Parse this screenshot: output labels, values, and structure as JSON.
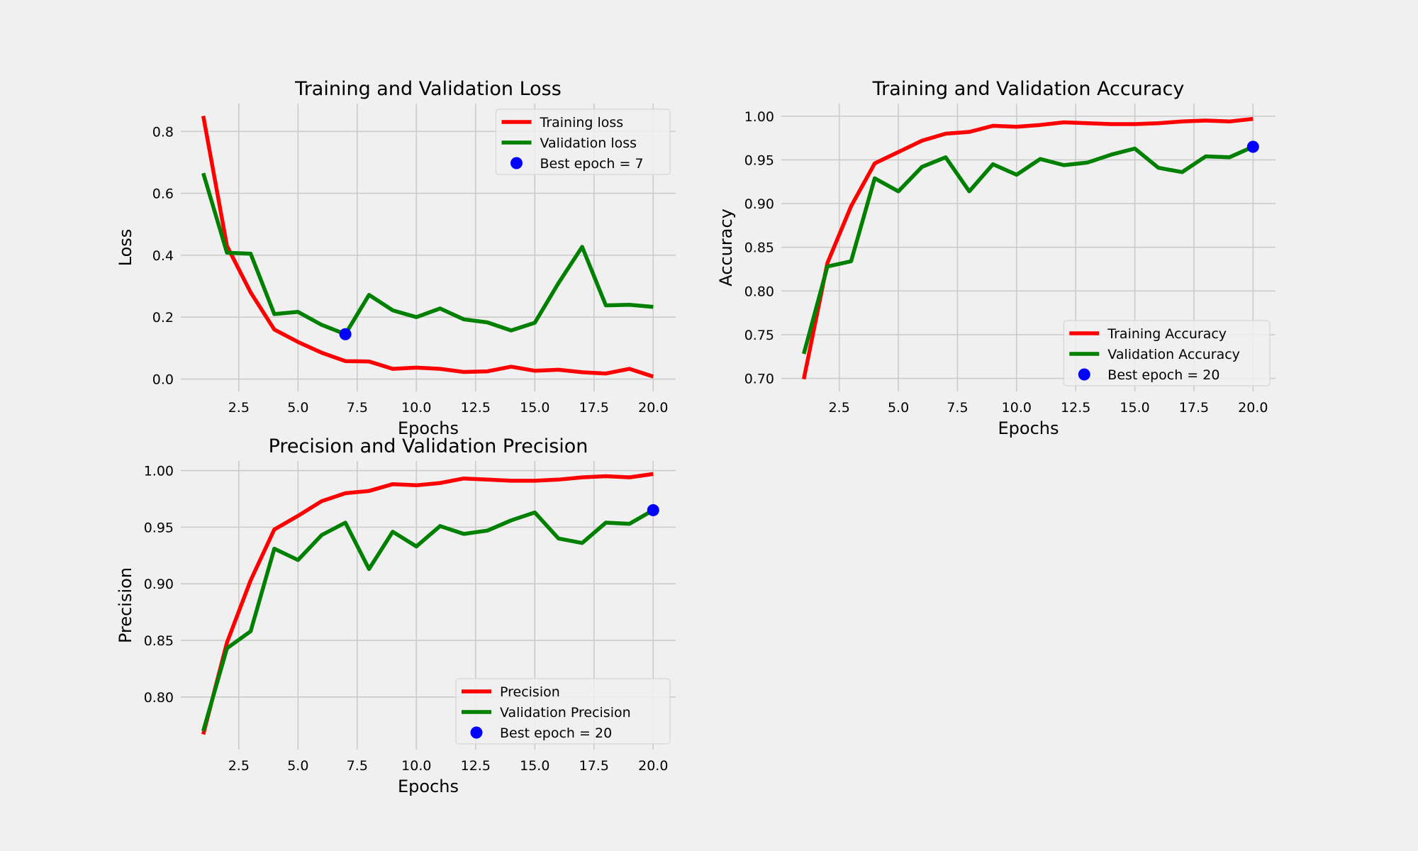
{
  "figure": {
    "background": "#f0f0f0",
    "colors": {
      "training": "#ff0000",
      "validation": "#008000",
      "best": "#0000ff",
      "grid": "#cbcbcb"
    }
  },
  "chart_data": [
    {
      "type": "line",
      "title": "Training and Validation Loss",
      "xlabel": "Epochs",
      "ylabel": "Loss",
      "xlim": [
        0.05,
        20.95
      ],
      "ylim": [
        -0.04,
        0.89
      ],
      "xticks": [
        2.5,
        5.0,
        7.5,
        10.0,
        12.5,
        15.0,
        17.5,
        20.0
      ],
      "xtick_labels": [
        "2.5",
        "5.0",
        "7.5",
        "10.0",
        "12.5",
        "15.0",
        "17.5",
        "20.0"
      ],
      "yticks": [
        0.0,
        0.2,
        0.4,
        0.6,
        0.8
      ],
      "ytick_labels": [
        "0.0",
        "0.2",
        "0.4",
        "0.6",
        "0.8"
      ],
      "grid": true,
      "legend_position": "top-right",
      "x": [
        1,
        2,
        3,
        4,
        5,
        6,
        7,
        8,
        9,
        10,
        11,
        12,
        13,
        14,
        15,
        16,
        17,
        18,
        19,
        20
      ],
      "series": [
        {
          "name": "Training loss",
          "color": "#ff0000",
          "values": [
            0.85,
            0.43,
            0.28,
            0.16,
            0.12,
            0.085,
            0.058,
            0.057,
            0.033,
            0.037,
            0.033,
            0.023,
            0.025,
            0.04,
            0.027,
            0.03,
            0.022,
            0.018,
            0.033,
            0.008
          ]
        },
        {
          "name": "Validation loss",
          "color": "#008000",
          "values": [
            0.665,
            0.408,
            0.405,
            0.21,
            0.217,
            0.175,
            0.145,
            0.272,
            0.222,
            0.2,
            0.228,
            0.193,
            0.183,
            0.157,
            0.182,
            0.31,
            0.427,
            0.238,
            0.24,
            0.233
          ]
        }
      ],
      "best": {
        "label": "Best epoch = 7",
        "x": 7,
        "y": 0.145,
        "color": "#0000ff"
      }
    },
    {
      "type": "line",
      "title": "Training and Validation Accuracy",
      "xlabel": "Epochs",
      "ylabel": "Accuracy",
      "xlim": [
        0.05,
        20.95
      ],
      "ylim": [
        0.685,
        1.0145
      ],
      "xticks": [
        2.5,
        5.0,
        7.5,
        10.0,
        12.5,
        15.0,
        17.5,
        20.0
      ],
      "xtick_labels": [
        "2.5",
        "5.0",
        "7.5",
        "10.0",
        "12.5",
        "15.0",
        "17.5",
        "20.0"
      ],
      "yticks": [
        0.7,
        0.75,
        0.8,
        0.85,
        0.9,
        0.95,
        1.0
      ],
      "ytick_labels": [
        "0.70",
        "0.75",
        "0.80",
        "0.85",
        "0.90",
        "0.95",
        "1.00"
      ],
      "grid": true,
      "legend_position": "bottom-right",
      "x": [
        1,
        2,
        3,
        4,
        5,
        6,
        7,
        8,
        9,
        10,
        11,
        12,
        13,
        14,
        15,
        16,
        17,
        18,
        19,
        20
      ],
      "series": [
        {
          "name": "Training Accuracy",
          "color": "#ff0000",
          "values": [
            0.699,
            0.832,
            0.897,
            0.946,
            0.959,
            0.972,
            0.98,
            0.982,
            0.989,
            0.988,
            0.99,
            0.993,
            0.992,
            0.991,
            0.991,
            0.992,
            0.994,
            0.995,
            0.994,
            0.997
          ]
        },
        {
          "name": "Validation Accuracy",
          "color": "#008000",
          "values": [
            0.728,
            0.828,
            0.834,
            0.929,
            0.914,
            0.942,
            0.953,
            0.914,
            0.945,
            0.933,
            0.951,
            0.944,
            0.947,
            0.956,
            0.963,
            0.941,
            0.936,
            0.954,
            0.953,
            0.965
          ]
        }
      ],
      "best": {
        "label": "Best epoch = 20",
        "x": 20,
        "y": 0.965,
        "color": "#0000ff"
      }
    },
    {
      "type": "line",
      "title": "Precision and Validation Precision",
      "xlabel": "Epochs",
      "ylabel": "Precision",
      "xlim": [
        0.05,
        20.95
      ],
      "ylim": [
        0.7535,
        1.0085
      ],
      "xticks": [
        2.5,
        5.0,
        7.5,
        10.0,
        12.5,
        15.0,
        17.5,
        20.0
      ],
      "xtick_labels": [
        "2.5",
        "5.0",
        "7.5",
        "10.0",
        "12.5",
        "15.0",
        "17.5",
        "20.0"
      ],
      "yticks": [
        0.8,
        0.85,
        0.9,
        0.95,
        1.0
      ],
      "ytick_labels": [
        "0.80",
        "0.85",
        "0.90",
        "0.95",
        "1.00"
      ],
      "grid": true,
      "legend_position": "bottom-right",
      "x": [
        1,
        2,
        3,
        4,
        5,
        6,
        7,
        8,
        9,
        10,
        11,
        12,
        13,
        14,
        15,
        16,
        17,
        18,
        19,
        20
      ],
      "series": [
        {
          "name": "Precision",
          "color": "#ff0000",
          "values": [
            0.767,
            0.848,
            0.903,
            0.948,
            0.96,
            0.973,
            0.98,
            0.982,
            0.988,
            0.987,
            0.989,
            0.993,
            0.992,
            0.991,
            0.991,
            0.992,
            0.994,
            0.995,
            0.994,
            0.997
          ]
        },
        {
          "name": "Validation Precision",
          "color": "#008000",
          "values": [
            0.77,
            0.843,
            0.858,
            0.931,
            0.921,
            0.943,
            0.954,
            0.913,
            0.946,
            0.933,
            0.951,
            0.944,
            0.947,
            0.956,
            0.963,
            0.94,
            0.936,
            0.954,
            0.953,
            0.965
          ]
        }
      ],
      "best": {
        "label": "Best epoch = 20",
        "x": 20,
        "y": 0.965,
        "color": "#0000ff"
      }
    }
  ]
}
